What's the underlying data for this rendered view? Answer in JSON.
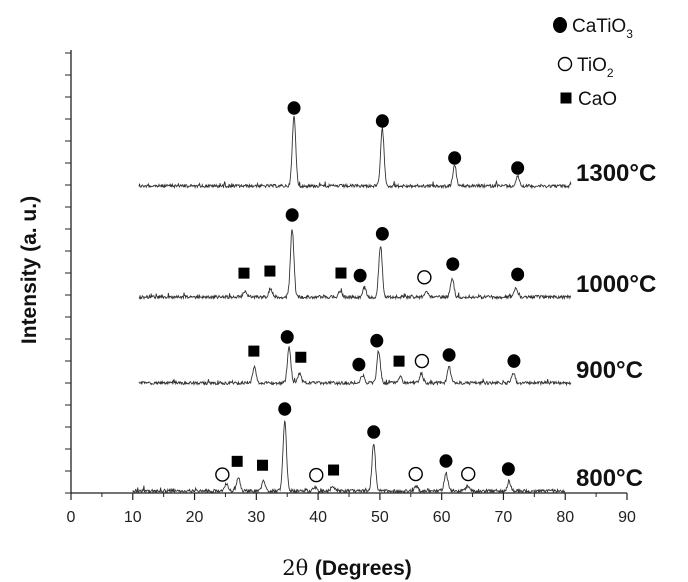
{
  "chart_data": {
    "type": "line",
    "xlabel_symbol": "2θ",
    "xlabel_text": "(Degrees)",
    "ylabel": "Intensity (a. u.)",
    "xlim": [
      0,
      90
    ],
    "xticks": [
      0,
      10,
      20,
      30,
      40,
      50,
      60,
      70,
      80,
      90
    ],
    "legend": [
      {
        "marker": "filled-circle",
        "formula": "CaTiO",
        "subscript": "3"
      },
      {
        "marker": "open-circle",
        "formula": "TiO",
        "subscript": "2"
      },
      {
        "marker": "filled-square",
        "formula": "CaO",
        "subscript": ""
      }
    ],
    "series": [
      {
        "name": "1300°C",
        "x_range": [
          11,
          81
        ],
        "peaks": [
          {
            "x": 36.1,
            "height": 70
          },
          {
            "x": 50.4,
            "height": 57
          },
          {
            "x": 62.1,
            "height": 20
          },
          {
            "x": 72.3,
            "height": 10
          }
        ],
        "markers": [
          {
            "x": 36.1,
            "shape": "filled-circle"
          },
          {
            "x": 50.4,
            "shape": "filled-circle"
          },
          {
            "x": 62.1,
            "shape": "filled-circle"
          },
          {
            "x": 72.3,
            "shape": "filled-circle"
          }
        ]
      },
      {
        "name": "1000°C",
        "x_range": [
          11,
          81
        ],
        "peaks": [
          {
            "x": 28.2,
            "height": 6
          },
          {
            "x": 32.3,
            "height": 8
          },
          {
            "x": 35.8,
            "height": 68
          },
          {
            "x": 43.6,
            "height": 6
          },
          {
            "x": 47.5,
            "height": 10
          },
          {
            "x": 50.1,
            "height": 52
          },
          {
            "x": 57.5,
            "height": 6
          },
          {
            "x": 61.7,
            "height": 19
          },
          {
            "x": 72.0,
            "height": 9
          }
        ],
        "markers": [
          {
            "x": 28.0,
            "shape": "filled-square"
          },
          {
            "x": 32.2,
            "shape": "filled-square"
          },
          {
            "x": 35.8,
            "shape": "filled-circle"
          },
          {
            "x": 43.7,
            "shape": "filled-square"
          },
          {
            "x": 46.8,
            "shape": "filled-circle"
          },
          {
            "x": 57.2,
            "shape": "open-circle"
          },
          {
            "x": 50.4,
            "shape": "filled-circle"
          },
          {
            "x": 61.8,
            "shape": "filled-circle"
          },
          {
            "x": 72.3,
            "shape": "filled-circle"
          }
        ]
      },
      {
        "name": "900°C",
        "x_range": [
          11,
          81
        ],
        "peaks": [
          {
            "x": 29.7,
            "height": 16
          },
          {
            "x": 35.3,
            "height": 36
          },
          {
            "x": 37.0,
            "height": 10
          },
          {
            "x": 47.2,
            "height": 8
          },
          {
            "x": 49.8,
            "height": 32
          },
          {
            "x": 53.3,
            "height": 6
          },
          {
            "x": 56.7,
            "height": 10
          },
          {
            "x": 61.2,
            "height": 16
          },
          {
            "x": 71.6,
            "height": 10
          }
        ],
        "markers": [
          {
            "x": 29.6,
            "shape": "filled-square"
          },
          {
            "x": 35.0,
            "shape": "filled-circle"
          },
          {
            "x": 37.2,
            "shape": "filled-square"
          },
          {
            "x": 46.6,
            "shape": "filled-circle"
          },
          {
            "x": 49.5,
            "shape": "filled-circle"
          },
          {
            "x": 53.1,
            "shape": "filled-square"
          },
          {
            "x": 56.8,
            "shape": "open-circle"
          },
          {
            "x": 61.2,
            "shape": "filled-circle"
          },
          {
            "x": 71.7,
            "shape": "filled-circle"
          }
        ]
      },
      {
        "name": "800°C",
        "x_range": [
          10,
          80
        ],
        "peaks": [
          {
            "x": 25.2,
            "height": 6
          },
          {
            "x": 27.1,
            "height": 14
          },
          {
            "x": 31.2,
            "height": 10
          },
          {
            "x": 34.6,
            "height": 70
          },
          {
            "x": 39.5,
            "height": 4
          },
          {
            "x": 42.4,
            "height": 5
          },
          {
            "x": 49.0,
            "height": 47
          },
          {
            "x": 55.9,
            "height": 5
          },
          {
            "x": 60.7,
            "height": 18
          },
          {
            "x": 64.2,
            "height": 5
          },
          {
            "x": 70.9,
            "height": 10
          }
        ],
        "markers": [
          {
            "x": 24.5,
            "shape": "open-circle"
          },
          {
            "x": 26.9,
            "shape": "filled-square"
          },
          {
            "x": 31.0,
            "shape": "filled-square"
          },
          {
            "x": 34.6,
            "shape": "filled-circle"
          },
          {
            "x": 39.7,
            "shape": "open-circle"
          },
          {
            "x": 42.5,
            "shape": "filled-square"
          },
          {
            "x": 49.0,
            "shape": "filled-circle"
          },
          {
            "x": 55.8,
            "shape": "open-circle"
          },
          {
            "x": 60.7,
            "shape": "filled-circle"
          },
          {
            "x": 64.3,
            "shape": "open-circle"
          },
          {
            "x": 70.8,
            "shape": "filled-circle"
          }
        ]
      }
    ]
  }
}
